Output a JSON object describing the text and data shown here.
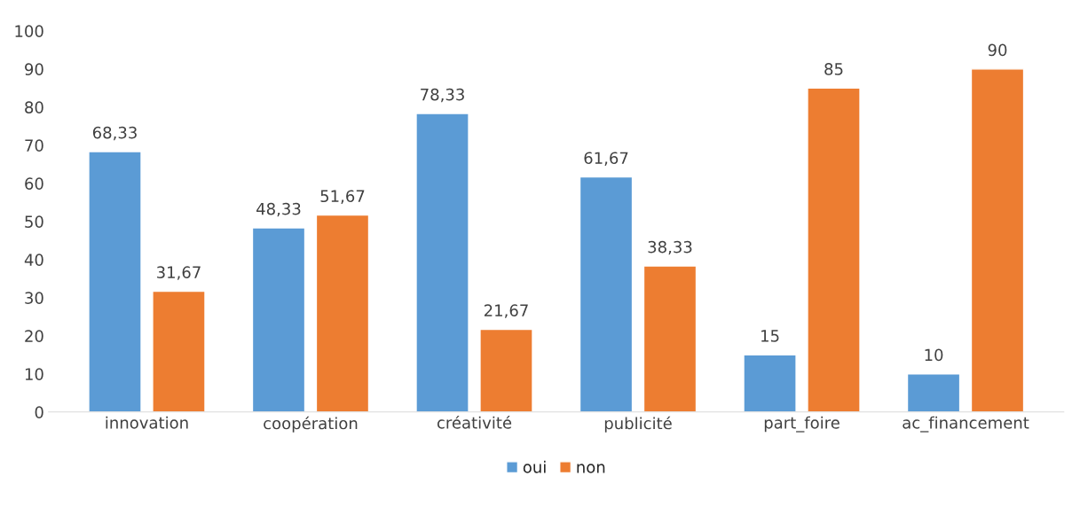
{
  "chart_data": {
    "type": "bar",
    "categories": [
      "innovation",
      "coopération",
      "créativité",
      "publicité",
      "part_foire",
      "ac_financement"
    ],
    "series": [
      {
        "name": "oui",
        "color": "#5b9bd5",
        "values": [
          68.33,
          48.33,
          78.33,
          61.67,
          15,
          10
        ],
        "value_labels": [
          "68,33",
          "48,33",
          "78,33",
          "61,67",
          "15",
          "10"
        ]
      },
      {
        "name": "non",
        "color": "#ed7d31",
        "values": [
          31.67,
          51.67,
          21.67,
          38.33,
          85,
          90
        ],
        "value_labels": [
          "31,67",
          "51,67",
          "21,67",
          "38,33",
          "85",
          "90"
        ]
      }
    ],
    "ylim": [
      0,
      100
    ],
    "yticks": [
      0,
      10,
      20,
      30,
      40,
      50,
      60,
      70,
      80,
      90,
      100
    ],
    "grid": false,
    "legend": "bottom"
  }
}
